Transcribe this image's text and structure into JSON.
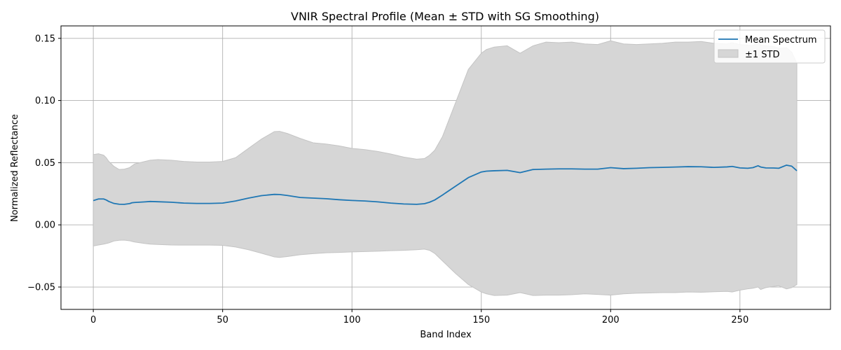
{
  "chart_data": {
    "type": "line",
    "title": "VNIR Spectral Profile (Mean ± STD with SG Smoothing)",
    "xlabel": "Band Index",
    "ylabel": "Normalized Reflectance",
    "xlim": [
      -12.5,
      285
    ],
    "ylim": [
      -0.068,
      0.16
    ],
    "xticks": [
      0,
      50,
      100,
      150,
      200,
      250
    ],
    "xtick_labels": [
      "0",
      "50",
      "100",
      "150",
      "200",
      "250"
    ],
    "yticks": [
      -0.05,
      0.0,
      0.05,
      0.1,
      0.15
    ],
    "ytick_labels": [
      "−0.05",
      "0.00",
      "0.05",
      "0.10",
      "0.15"
    ],
    "grid": true,
    "legend_position": "top-right",
    "colors": {
      "mean": "#1f77b4",
      "band": "#d6d6d6",
      "band_edge": "#c4c4c4"
    },
    "series": [
      {
        "name": "Mean Spectrum",
        "kind": "line",
        "x": [
          0,
          2,
          4,
          5,
          6,
          8,
          10,
          12,
          14,
          15,
          16,
          20,
          22,
          25,
          30,
          35,
          40,
          45,
          50,
          55,
          60,
          65,
          70,
          72,
          75,
          80,
          85,
          90,
          95,
          100,
          105,
          110,
          115,
          120,
          125,
          128,
          130,
          132,
          135,
          140,
          145,
          150,
          152,
          155,
          160,
          165,
          170,
          175,
          180,
          185,
          190,
          195,
          200,
          205,
          210,
          215,
          220,
          225,
          230,
          235,
          240,
          245,
          247,
          250,
          253,
          255,
          257,
          258,
          260,
          263,
          265,
          268,
          270,
          272
        ],
        "y": [
          0.0195,
          0.0208,
          0.0208,
          0.02,
          0.0188,
          0.0172,
          0.0166,
          0.0165,
          0.0171,
          0.0178,
          0.018,
          0.0185,
          0.0188,
          0.0186,
          0.0182,
          0.0175,
          0.0172,
          0.0172,
          0.0175,
          0.0192,
          0.0215,
          0.0235,
          0.0245,
          0.0244,
          0.0236,
          0.022,
          0.0215,
          0.021,
          0.0202,
          0.0196,
          0.0192,
          0.0185,
          0.0175,
          0.0168,
          0.0165,
          0.017,
          0.0182,
          0.02,
          0.024,
          0.031,
          0.038,
          0.0425,
          0.0432,
          0.0435,
          0.0438,
          0.042,
          0.0445,
          0.0448,
          0.045,
          0.045,
          0.0448,
          0.0448,
          0.046,
          0.0452,
          0.0455,
          0.046,
          0.0462,
          0.0465,
          0.0468,
          0.0467,
          0.0462,
          0.0466,
          0.047,
          0.0458,
          0.0455,
          0.046,
          0.0475,
          0.0465,
          0.0458,
          0.0457,
          0.0455,
          0.048,
          0.0472,
          0.0435
        ]
      },
      {
        "name": "±1 STD",
        "kind": "band",
        "x": [
          0,
          2,
          4,
          5,
          6,
          8,
          10,
          12,
          14,
          15,
          16,
          20,
          22,
          25,
          30,
          35,
          40,
          45,
          50,
          55,
          60,
          65,
          70,
          72,
          75,
          80,
          85,
          90,
          95,
          100,
          105,
          110,
          115,
          120,
          125,
          128,
          130,
          132,
          135,
          140,
          145,
          150,
          152,
          155,
          160,
          165,
          170,
          175,
          180,
          185,
          190,
          195,
          200,
          205,
          210,
          215,
          220,
          225,
          230,
          235,
          240,
          245,
          247,
          250,
          253,
          255,
          257,
          258,
          260,
          263,
          265,
          268,
          270,
          272
        ],
        "upper": [
          0.0565,
          0.0572,
          0.056,
          0.054,
          0.051,
          0.047,
          0.0445,
          0.0448,
          0.046,
          0.0475,
          0.049,
          0.051,
          0.052,
          0.0525,
          0.052,
          0.051,
          0.0505,
          0.0505,
          0.051,
          0.054,
          0.0615,
          0.069,
          0.075,
          0.0752,
          0.0735,
          0.0695,
          0.066,
          0.065,
          0.0635,
          0.0615,
          0.0605,
          0.059,
          0.057,
          0.0545,
          0.0528,
          0.0533,
          0.056,
          0.06,
          0.071,
          0.098,
          0.125,
          0.138,
          0.141,
          0.143,
          0.144,
          0.138,
          0.144,
          0.147,
          0.1465,
          0.147,
          0.1455,
          0.145,
          0.148,
          0.1455,
          0.145,
          0.1455,
          0.146,
          0.147,
          0.147,
          0.1475,
          0.146,
          0.1455,
          0.1465,
          0.145,
          0.1445,
          0.144,
          0.1475,
          0.1445,
          0.144,
          0.1435,
          0.142,
          0.1425,
          0.139,
          0.13
        ]
      }
    ],
    "series_lower": [
      -0.017,
      -0.0162,
      -0.0155,
      -0.015,
      -0.0145,
      -0.013,
      -0.0124,
      -0.0123,
      -0.0128,
      -0.0133,
      -0.0138,
      -0.015,
      -0.0155,
      -0.0158,
      -0.0162,
      -0.0163,
      -0.0163,
      -0.0163,
      -0.0165,
      -0.0178,
      -0.02,
      -0.0228,
      -0.0258,
      -0.0262,
      -0.0255,
      -0.024,
      -0.0232,
      -0.0225,
      -0.0222,
      -0.0218,
      -0.0215,
      -0.0212,
      -0.0208,
      -0.0205,
      -0.02,
      -0.0195,
      -0.0205,
      -0.023,
      -0.029,
      -0.039,
      -0.048,
      -0.054,
      -0.0555,
      -0.0568,
      -0.0565,
      -0.0545,
      -0.0568,
      -0.0565,
      -0.0565,
      -0.0562,
      -0.0555,
      -0.056,
      -0.0565,
      -0.0555,
      -0.055,
      -0.0548,
      -0.0545,
      -0.0545,
      -0.054,
      -0.0542,
      -0.0538,
      -0.0535,
      -0.054,
      -0.0525,
      -0.0515,
      -0.051,
      -0.05,
      -0.052,
      -0.0505,
      -0.0495,
      -0.049,
      -0.0515,
      -0.0505,
      -0.048
    ]
  }
}
